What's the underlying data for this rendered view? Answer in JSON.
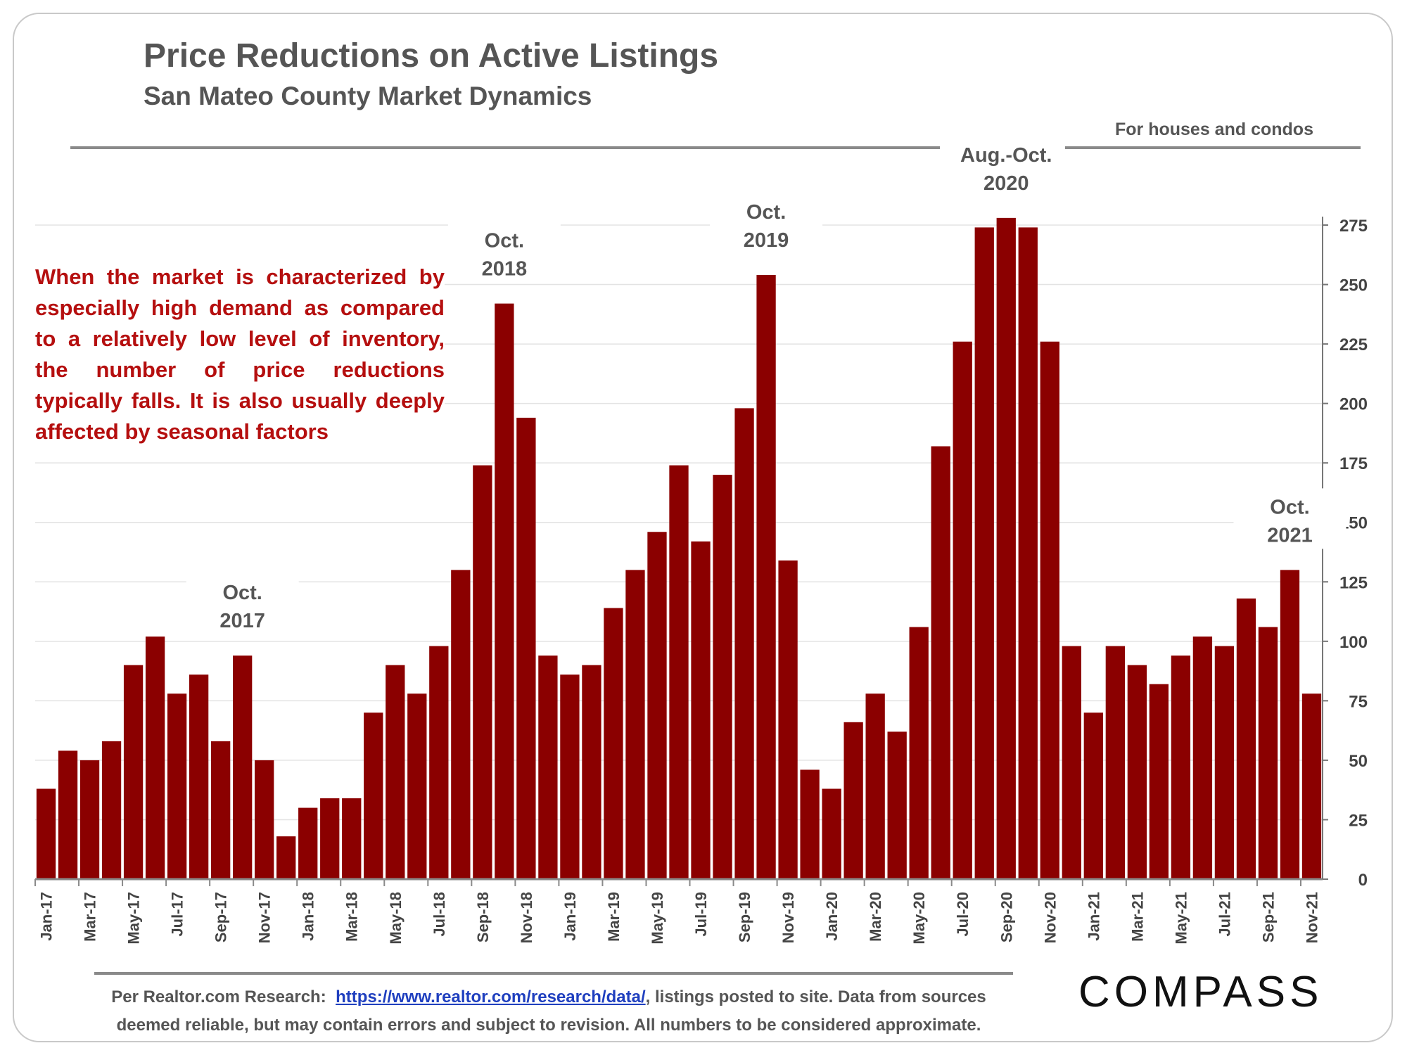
{
  "header": {
    "title": "Price Reductions on Active Listings",
    "subtitle": "San Mateo County Market Dynamics",
    "note": "For houses and condos"
  },
  "callout": "When the market is characterized by especially high demand as compared to a relatively low level of inventory, the number of price reductions typically falls. It is also usually deeply affected by seasonal factors",
  "footer": {
    "prefix": "Per Realtor.com Research:",
    "link": "https://www.realtor.com/research/data/",
    "suffix": ", listings posted to site. Data from sources",
    "line2": "deemed reliable, but may contain errors and subject to revision. All numbers to be considered approximate."
  },
  "brand": {
    "logo": "COMPASS"
  },
  "colors": {
    "bar": "#8b0000",
    "callout": "#b50f0f",
    "link": "#1f3fbf"
  },
  "chart_data": {
    "type": "bar",
    "title": "Price Reductions on Active Listings",
    "categories": [
      "Jan-17",
      "Feb-17",
      "Mar-17",
      "Apr-17",
      "May-17",
      "Jun-17",
      "Jul-17",
      "Aug-17",
      "Sep-17",
      "Oct-17",
      "Nov-17",
      "Dec-17",
      "Jan-18",
      "Feb-18",
      "Mar-18",
      "Apr-18",
      "May-18",
      "Jun-18",
      "Jul-18",
      "Aug-18",
      "Sep-18",
      "Oct-18",
      "Nov-18",
      "Dec-18",
      "Jan-19",
      "Feb-19",
      "Mar-19",
      "Apr-19",
      "May-19",
      "Jun-19",
      "Jul-19",
      "Aug-19",
      "Sep-19",
      "Oct-19",
      "Nov-19",
      "Dec-19",
      "Jan-20",
      "Feb-20",
      "Mar-20",
      "Apr-20",
      "May-20",
      "Jun-20",
      "Jul-20",
      "Aug-20",
      "Sep-20",
      "Oct-20",
      "Nov-20",
      "Dec-20",
      "Jan-21",
      "Feb-21",
      "Mar-21",
      "Apr-21",
      "May-21",
      "Jun-21",
      "Jul-21",
      "Aug-21",
      "Sep-21",
      "Oct-21",
      "Nov-21"
    ],
    "xtick_labels": [
      "Jan-17",
      "Mar-17",
      "May-17",
      "Jul-17",
      "Sep-17",
      "Nov-17",
      "Jan-18",
      "Mar-18",
      "May-18",
      "Jul-18",
      "Sep-18",
      "Nov-18",
      "Jan-19",
      "Mar-19",
      "May-19",
      "Jul-19",
      "Sep-19",
      "Nov-19",
      "Jan-20",
      "Mar-20",
      "May-20",
      "Jul-20",
      "Sep-20",
      "Nov-20",
      "Jan-21",
      "Mar-21",
      "May-21",
      "Jul-21",
      "Sep-21",
      "Nov-21"
    ],
    "values": [
      38,
      54,
      50,
      58,
      90,
      102,
      78,
      86,
      58,
      94,
      50,
      18,
      30,
      34,
      34,
      70,
      90,
      78,
      98,
      130,
      174,
      242,
      194,
      94,
      86,
      90,
      114,
      130,
      146,
      174,
      142,
      170,
      198,
      254,
      134,
      46,
      38,
      66,
      78,
      62,
      106,
      182,
      226,
      274,
      278,
      274,
      226,
      98,
      70,
      98,
      90,
      82,
      94,
      102,
      98,
      118,
      106,
      130,
      78
    ],
    "ylim": [
      0,
      275
    ],
    "yticks": [
      0,
      25,
      50,
      75,
      100,
      125,
      150,
      175,
      200,
      225,
      250,
      275
    ],
    "ytick_labels": [
      "0",
      "25",
      "50",
      "75",
      "100",
      "125",
      "150",
      "175",
      "200",
      "225",
      "250",
      "275"
    ],
    "annotations": [
      {
        "line1": "Oct.",
        "line2": "2017",
        "at": "Oct-17"
      },
      {
        "line1": "Oct.",
        "line2": "2018",
        "at": "Oct-18"
      },
      {
        "line1": "Oct.",
        "line2": "2019",
        "at": "Oct-19"
      },
      {
        "line1": "Aug.-Oct.",
        "line2": "2020",
        "at": "Sep-20"
      },
      {
        "line1": "Oct.",
        "line2": "2021",
        "at": "Oct-21"
      }
    ],
    "grid": true,
    "yaxis_side": "right"
  }
}
